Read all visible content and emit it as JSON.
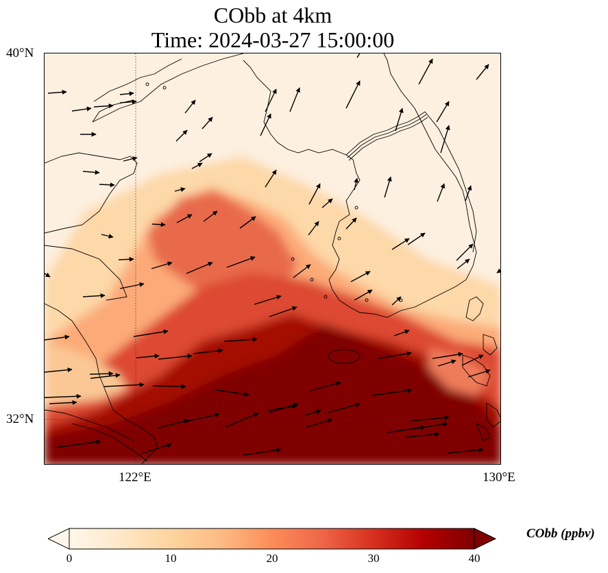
{
  "title": {
    "line1": "CObb at 4km",
    "line2": "Time: 2024-03-27 15:00:00"
  },
  "axes": {
    "lat_labels": [
      "40°N",
      "32°N"
    ],
    "lon_labels": [
      "122°E",
      "130°E"
    ],
    "lon_range": [
      120,
      130
    ],
    "lat_range": [
      31,
      40
    ]
  },
  "colorbar": {
    "title": "CObb (ppbv)",
    "ticks": [
      "0",
      "10",
      "20",
      "30",
      "40"
    ],
    "range": [
      0,
      40
    ],
    "extend": "both",
    "colormap": "OrRd",
    "colors": [
      "#fff7ec",
      "#fee8c8",
      "#fdd49e",
      "#fdbb84",
      "#fc8d59",
      "#ef6548",
      "#d7301f",
      "#b30000",
      "#7f0000"
    ]
  },
  "map": {
    "field": "CObb",
    "level": "4km",
    "projection": "lat-lon",
    "gridlines": "dotted at 122°E and 32°N",
    "features": [
      "coastlines",
      "wind vectors"
    ]
  }
}
